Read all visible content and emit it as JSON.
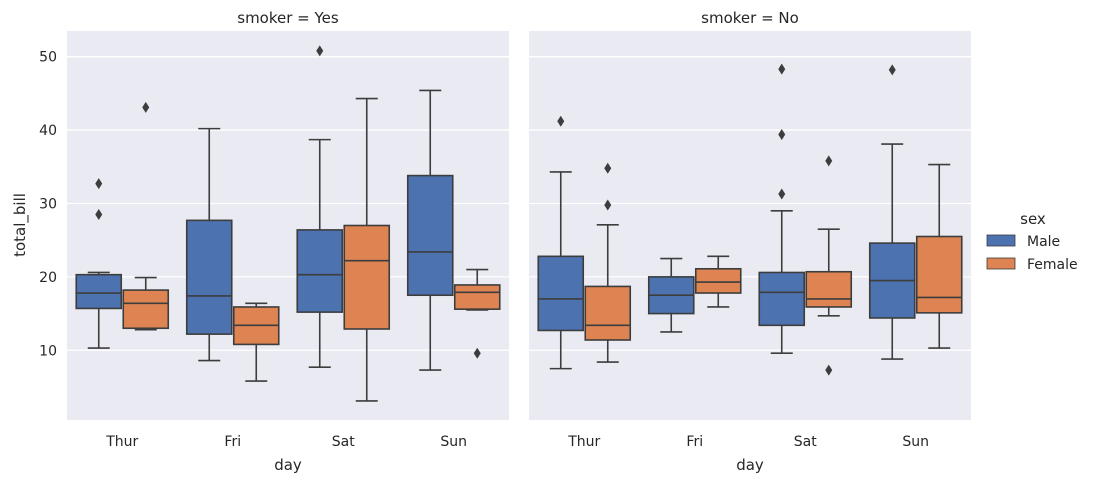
{
  "chart_data": {
    "type": "box",
    "ylabel": "total_bill",
    "xlabel": "day",
    "categories": [
      "Thur",
      "Fri",
      "Sat",
      "Sun"
    ],
    "yticks": [
      10,
      20,
      30,
      40,
      50
    ],
    "ylim": [
      0.5,
      53.5
    ],
    "grid": true,
    "legend": {
      "title": "sex",
      "placement": "right",
      "entries": [
        {
          "name": "Male",
          "color": "#4c72b0"
        },
        {
          "name": "Female",
          "color": "#dd8452"
        }
      ]
    },
    "panels": [
      {
        "title": "smoker = Yes",
        "series": [
          {
            "name": "Male",
            "boxes": [
              {
                "category": "Thur",
                "whisker_low": 10.3,
                "q1": 15.7,
                "median": 17.8,
                "q3": 20.3,
                "whisker_high": 20.6,
                "outliers": [
                  28.5,
                  32.7
                ]
              },
              {
                "category": "Fri",
                "whisker_low": 8.6,
                "q1": 12.2,
                "median": 17.4,
                "q3": 27.7,
                "whisker_high": 40.2,
                "outliers": []
              },
              {
                "category": "Sat",
                "whisker_low": 7.7,
                "q1": 15.2,
                "median": 20.3,
                "q3": 26.4,
                "whisker_high": 38.7,
                "outliers": [
                  50.8
                ]
              },
              {
                "category": "Sun",
                "whisker_low": 7.3,
                "q1": 17.5,
                "median": 23.4,
                "q3": 33.8,
                "whisker_high": 45.4,
                "outliers": []
              }
            ]
          },
          {
            "name": "Female",
            "boxes": [
              {
                "category": "Thur",
                "whisker_low": 12.8,
                "q1": 13.0,
                "median": 16.4,
                "q3": 18.2,
                "whisker_high": 19.9,
                "outliers": [
                  43.1
                ]
              },
              {
                "category": "Fri",
                "whisker_low": 5.8,
                "q1": 10.8,
                "median": 13.4,
                "q3": 15.9,
                "whisker_high": 16.4,
                "outliers": []
              },
              {
                "category": "Sat",
                "whisker_low": 3.1,
                "q1": 12.9,
                "median": 22.2,
                "q3": 27.0,
                "whisker_high": 44.3,
                "outliers": []
              },
              {
                "category": "Sun",
                "whisker_low": 15.5,
                "q1": 15.6,
                "median": 17.9,
                "q3": 18.9,
                "whisker_high": 21.0,
                "outliers": [
                  9.6
                ]
              }
            ]
          }
        ]
      },
      {
        "title": "smoker = No",
        "series": [
          {
            "name": "Male",
            "boxes": [
              {
                "category": "Thur",
                "whisker_low": 7.5,
                "q1": 12.7,
                "median": 17.0,
                "q3": 22.8,
                "whisker_high": 34.3,
                "outliers": [
                  41.2
                ]
              },
              {
                "category": "Fri",
                "whisker_low": 12.5,
                "q1": 15.0,
                "median": 17.5,
                "q3": 20.0,
                "whisker_high": 22.5,
                "outliers": []
              },
              {
                "category": "Sat",
                "whisker_low": 9.6,
                "q1": 13.4,
                "median": 17.9,
                "q3": 20.6,
                "whisker_high": 29.0,
                "outliers": [
                  31.3,
                  39.4,
                  48.3
                ]
              },
              {
                "category": "Sun",
                "whisker_low": 8.8,
                "q1": 14.4,
                "median": 19.5,
                "q3": 24.6,
                "whisker_high": 38.1,
                "outliers": [
                  48.2
                ]
              }
            ]
          },
          {
            "name": "Female",
            "boxes": [
              {
                "category": "Thur",
                "whisker_low": 8.4,
                "q1": 11.4,
                "median": 13.4,
                "q3": 18.7,
                "whisker_high": 27.1,
                "outliers": [
                  29.8,
                  34.8
                ]
              },
              {
                "category": "Fri",
                "whisker_low": 15.9,
                "q1": 17.8,
                "median": 19.3,
                "q3": 21.1,
                "whisker_high": 22.8,
                "outliers": []
              },
              {
                "category": "Sat",
                "whisker_low": 14.7,
                "q1": 15.9,
                "median": 17.0,
                "q3": 20.7,
                "whisker_high": 26.5,
                "outliers": [
                  7.3,
                  35.8
                ]
              },
              {
                "category": "Sun",
                "whisker_low": 10.3,
                "q1": 15.1,
                "median": 17.2,
                "q3": 25.5,
                "whisker_high": 35.3,
                "outliers": []
              }
            ]
          }
        ]
      }
    ]
  }
}
